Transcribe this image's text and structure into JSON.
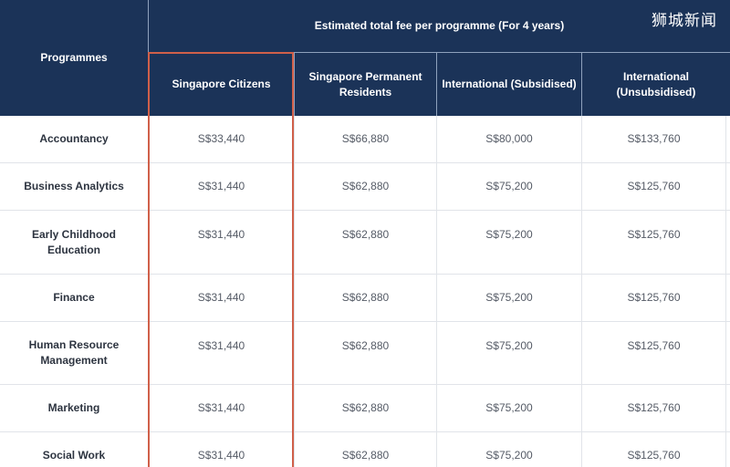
{
  "watermark": "狮城新闻",
  "header": {
    "programmes_label": "Programmes",
    "group_label": "Estimated total fee per programme (For 4 years)",
    "columns": [
      "Singapore Citizens",
      "Singapore Permanent Residents",
      "International (Subsidised)",
      "International (Unsubsidised)"
    ]
  },
  "rows": [
    {
      "programme": "Accountancy",
      "fees": [
        "S$33,440",
        "S$66,880",
        "S$80,000",
        "S$133,760"
      ]
    },
    {
      "programme": "Business Analytics",
      "fees": [
        "S$31,440",
        "S$62,880",
        "S$75,200",
        "S$125,760"
      ]
    },
    {
      "programme": "Early Childhood Education",
      "fees": [
        "S$31,440",
        "S$62,880",
        "S$75,200",
        "S$125,760"
      ]
    },
    {
      "programme": "Finance",
      "fees": [
        "S$31,440",
        "S$62,880",
        "S$75,200",
        "S$125,760"
      ]
    },
    {
      "programme": "Human Resource Management",
      "fees": [
        "S$31,440",
        "S$62,880",
        "S$75,200",
        "S$125,760"
      ]
    },
    {
      "programme": "Marketing",
      "fees": [
        "S$31,440",
        "S$62,880",
        "S$75,200",
        "S$125,760"
      ]
    },
    {
      "programme": "Social Work",
      "fees": [
        "S$31,440",
        "S$62,880",
        "S$75,200",
        "S$125,760"
      ]
    }
  ],
  "colors": {
    "header_bg": "#1b3358",
    "highlight_border": "#d0604a"
  }
}
